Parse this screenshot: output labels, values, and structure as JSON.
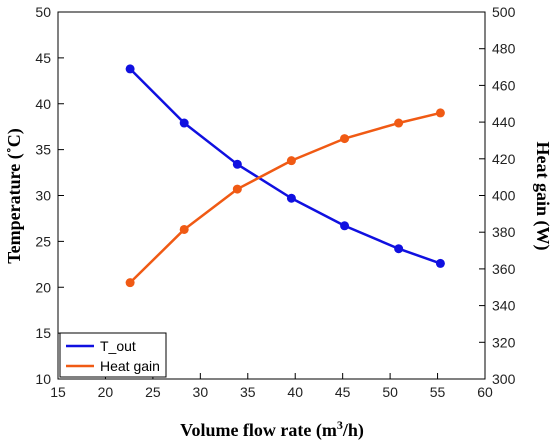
{
  "chart_data": {
    "type": "line",
    "x": [
      22.6,
      28.3,
      33.9,
      39.6,
      45.2,
      50.9,
      55.3
    ],
    "xlabel": "Volume flow rate (m³/h)",
    "xlabel_parts": {
      "before": "Volume flow rate (m",
      "sup": "3",
      "after": "/h)"
    },
    "xlim": [
      15,
      60
    ],
    "xticks": [
      15,
      20,
      25,
      30,
      35,
      40,
      45,
      50,
      55,
      60
    ],
    "ylabel_left": "Temperature (˚C)",
    "ylim_left": [
      10,
      50
    ],
    "yticks_left": [
      10,
      15,
      20,
      25,
      30,
      35,
      40,
      45,
      50
    ],
    "ylabel_right": "Heat gain (W)",
    "ylim_right": [
      300,
      500
    ],
    "yticks_right": [
      300,
      320,
      340,
      360,
      380,
      400,
      420,
      440,
      460,
      480,
      500
    ],
    "grid": false,
    "legend_position": "bottom-left",
    "series": [
      {
        "name": "T_out",
        "axis": "left",
        "color": "#1010e0",
        "values": [
          43.8,
          37.9,
          33.4,
          29.7,
          26.7,
          24.2,
          22.6
        ]
      },
      {
        "name": "Heat gain",
        "axis": "right",
        "color": "#f05a14",
        "values": [
          352.5,
          381.5,
          403.5,
          419,
          431,
          439.5,
          445
        ]
      }
    ]
  }
}
